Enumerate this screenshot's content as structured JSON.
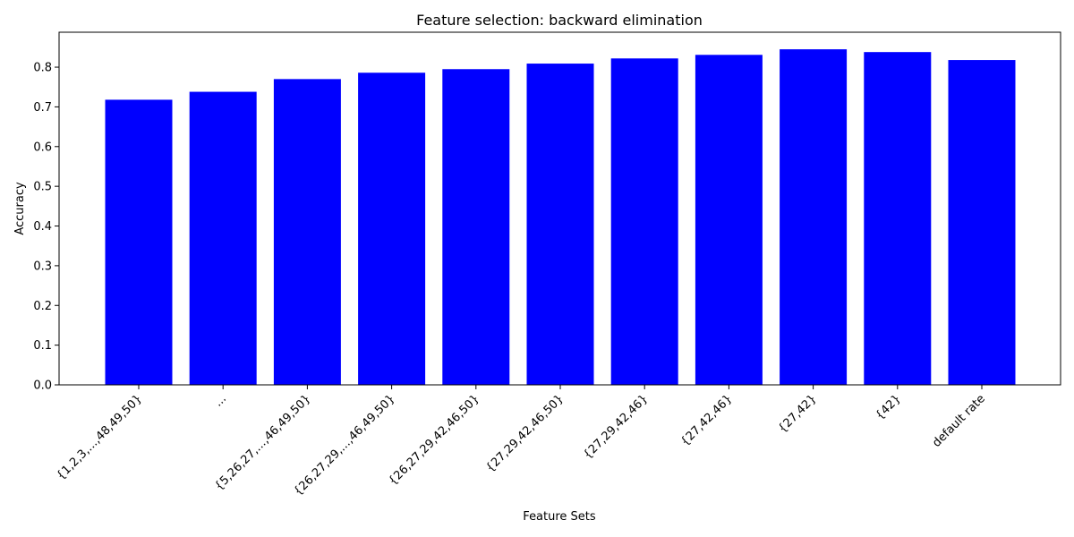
{
  "chart_data": {
    "type": "bar",
    "title": "Feature selection: backward elimination",
    "xlabel": "Feature Sets",
    "ylabel": "Accuracy",
    "categories": [
      "{1,2,3,...,48,49,50}",
      "...",
      "{5,26,27,...,46,49,50}",
      "{26,27,29,...,46,49,50}",
      "{26,27,29,42,46,50}",
      "{27,29,42,46,50}",
      "{27,29,42,46}",
      "{27,42,46}",
      "{27,42}",
      "{42}",
      "default rate"
    ],
    "values": [
      0.718,
      0.738,
      0.77,
      0.786,
      0.795,
      0.809,
      0.822,
      0.831,
      0.845,
      0.838,
      0.818
    ],
    "ylim": [
      0,
      0.888
    ],
    "yticks": [
      "0.0",
      "0.1",
      "0.2",
      "0.3",
      "0.4",
      "0.5",
      "0.6",
      "0.7",
      "0.8"
    ],
    "bar_color": "#0000ff",
    "grid": false,
    "legend": "none"
  }
}
